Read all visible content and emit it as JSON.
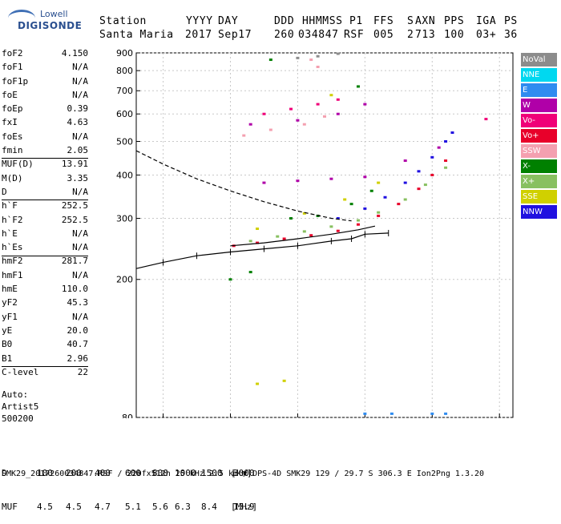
{
  "logo": {
    "line1": "Lowell",
    "line2": "DIGISONDE"
  },
  "header": {
    "labels": [
      "Station",
      "YYYY",
      "DAY",
      "DDD",
      "HHMMSS",
      "P1",
      "FFS",
      "S",
      "AXN",
      "PPS",
      "IGA",
      "PS"
    ],
    "values": [
      "Santa Maria",
      "2017",
      "Sep17",
      "260",
      "034847",
      "RSF",
      "005",
      "2",
      "713",
      "100",
      "03+",
      "36"
    ]
  },
  "params": [
    {
      "label": "foF2",
      "value": "4.150"
    },
    {
      "label": "foF1",
      "value": "N/A"
    },
    {
      "label": "foF1p",
      "value": "N/A"
    },
    {
      "label": "foE",
      "value": "N/A"
    },
    {
      "label": "foEp",
      "value": "0.39"
    },
    {
      "label": "fxI",
      "value": "4.63"
    },
    {
      "label": "foEs",
      "value": "N/A"
    },
    {
      "label": "fmin",
      "value": "2.05"
    },
    {
      "label": "MUF(D)",
      "value": "13.91"
    },
    {
      "label": "M(D)",
      "value": "3.35"
    },
    {
      "label": "D",
      "value": "N/A"
    },
    {
      "label": "h`F",
      "value": "252.5"
    },
    {
      "label": "h`F2",
      "value": "252.5"
    },
    {
      "label": "h`E",
      "value": "N/A"
    },
    {
      "label": "h`Es",
      "value": "N/A"
    },
    {
      "label": "hmF2",
      "value": "281.7"
    },
    {
      "label": "hmF1",
      "value": "N/A"
    },
    {
      "label": "hmE",
      "value": "110.0"
    },
    {
      "label": "yF2",
      "value": "45.3"
    },
    {
      "label": "yF1",
      "value": "N/A"
    },
    {
      "label": "yE",
      "value": "20.0"
    },
    {
      "label": "B0",
      "value": "40.7"
    },
    {
      "label": "B1",
      "value": "2.96"
    },
    {
      "label": "C-level",
      "value": "22"
    }
  ],
  "autoscaling": {
    "line1": "Auto:",
    "line2": "Artist5",
    "line3": "500200"
  },
  "legend": [
    {
      "name": "NoVal",
      "color": "#8c8c8c"
    },
    {
      "name": "NNE",
      "color": "#00d8f0"
    },
    {
      "name": "E",
      "color": "#2f8cf0"
    },
    {
      "name": "W",
      "color": "#b000a8"
    },
    {
      "name": "Vo-",
      "color": "#f00078"
    },
    {
      "name": "Vo+",
      "color": "#e8002a"
    },
    {
      "name": "SSW",
      "color": "#f4a0b0"
    },
    {
      "name": "X-",
      "color": "#008000"
    },
    {
      "name": "X+",
      "color": "#88c060"
    },
    {
      "name": "SSE",
      "color": "#d0d000"
    },
    {
      "name": "NNW",
      "color": "#2010e0"
    }
  ],
  "distance_muf": {
    "d_label": "D",
    "d_values": [
      "100",
      "200",
      "400",
      "600",
      "800",
      "1000",
      "1500",
      "3000"
    ],
    "d_unit": "[km]",
    "muf_label": "MUF",
    "muf_values": [
      "4.5",
      "4.5",
      "4.7",
      "5.1",
      "5.6",
      "6.3",
      "8.4",
      "13.9"
    ],
    "muf_unit": "[MHz]"
  },
  "footer": "SMK29_2017260034847.RSF / 220fx512h 25 kHz 2.5 km / DPS-4D SMK29 129 / 29.7 S 306.3 E Ion2Png 1.3.20",
  "chart_data": {
    "type": "scatter",
    "title": "",
    "xlabel": "",
    "ylabel": "",
    "xlim": [
      0.6,
      6.2
    ],
    "ylim": [
      80,
      900
    ],
    "x_ticks": [
      1,
      2,
      3,
      4,
      5,
      6
    ],
    "y_ticks": [
      80,
      200,
      300,
      400,
      500,
      600,
      700,
      800,
      900
    ],
    "y_scale": "log",
    "grid": true,
    "clusters": [
      {
        "series": "Vo+",
        "points": [
          [
            2.05,
            250
          ],
          [
            2.4,
            255
          ],
          [
            2.8,
            262
          ],
          [
            3.2,
            268
          ],
          [
            3.6,
            276
          ],
          [
            3.9,
            288
          ],
          [
            4.2,
            305
          ],
          [
            4.5,
            330
          ],
          [
            4.8,
            365
          ],
          [
            5.0,
            400
          ],
          [
            5.2,
            440
          ]
        ]
      },
      {
        "series": "X+",
        "points": [
          [
            2.3,
            258
          ],
          [
            2.7,
            266
          ],
          [
            3.1,
            275
          ],
          [
            3.5,
            284
          ],
          [
            3.9,
            296
          ],
          [
            4.2,
            312
          ],
          [
            4.6,
            340
          ],
          [
            4.9,
            375
          ],
          [
            5.2,
            420
          ]
        ]
      },
      {
        "series": "NNW",
        "points": [
          [
            3.6,
            300
          ],
          [
            4.0,
            320
          ],
          [
            4.3,
            345
          ],
          [
            4.6,
            380
          ],
          [
            4.8,
            410
          ],
          [
            5.0,
            450
          ],
          [
            5.2,
            500
          ],
          [
            5.3,
            530
          ]
        ]
      },
      {
        "series": "W",
        "points": [
          [
            2.5,
            380
          ],
          [
            3.0,
            385
          ],
          [
            3.5,
            390
          ],
          [
            4.0,
            395
          ],
          [
            4.6,
            440
          ],
          [
            5.1,
            480
          ],
          [
            2.3,
            560
          ],
          [
            3.0,
            575
          ],
          [
            3.6,
            600
          ],
          [
            4.0,
            640
          ]
        ]
      },
      {
        "series": "X-",
        "points": [
          [
            2.9,
            300
          ],
          [
            3.3,
            305
          ],
          [
            3.8,
            330
          ],
          [
            4.1,
            360
          ],
          [
            2.0,
            200
          ],
          [
            2.3,
            210
          ],
          [
            2.6,
            860
          ],
          [
            3.9,
            720
          ]
        ]
      },
      {
        "series": "SSE",
        "points": [
          [
            2.4,
            280
          ],
          [
            3.1,
            310
          ],
          [
            3.7,
            340
          ],
          [
            4.2,
            380
          ],
          [
            2.4,
            100
          ],
          [
            2.8,
            102
          ],
          [
            3.5,
            680
          ]
        ]
      },
      {
        "series": "SSW",
        "points": [
          [
            2.2,
            520
          ],
          [
            2.6,
            540
          ],
          [
            3.1,
            560
          ],
          [
            3.4,
            590
          ],
          [
            3.2,
            860
          ],
          [
            3.3,
            820
          ]
        ]
      },
      {
        "series": "E",
        "points": [
          [
            4.0,
            82
          ],
          [
            4.4,
            82
          ],
          [
            5.0,
            82
          ],
          [
            5.2,
            82
          ]
        ]
      },
      {
        "series": "Vo-",
        "points": [
          [
            2.5,
            600
          ],
          [
            2.9,
            620
          ],
          [
            3.3,
            640
          ],
          [
            3.6,
            660
          ],
          [
            5.8,
            580
          ]
        ]
      },
      {
        "series": "NoVal",
        "points": [
          [
            3.0,
            870
          ],
          [
            3.3,
            880
          ],
          [
            3.6,
            895
          ]
        ]
      }
    ],
    "curves": [
      {
        "name": "virtual-height-profile",
        "style": "dashed",
        "points": [
          [
            0.6,
            470
          ],
          [
            1.0,
            430
          ],
          [
            1.5,
            390
          ],
          [
            2.0,
            360
          ],
          [
            2.5,
            335
          ],
          [
            3.0,
            315
          ],
          [
            3.5,
            300
          ],
          [
            3.8,
            295
          ]
        ]
      },
      {
        "name": "trace-fit",
        "style": "ticked",
        "points": [
          [
            0.6,
            215
          ],
          [
            1.0,
            224
          ],
          [
            1.5,
            234
          ],
          [
            2.0,
            240
          ],
          [
            2.5,
            245
          ],
          [
            3.0,
            250
          ],
          [
            3.5,
            258
          ],
          [
            3.8,
            262
          ],
          [
            4.0,
            270
          ],
          [
            4.35,
            272
          ]
        ]
      },
      {
        "name": "trace-fit-upper",
        "style": "solid",
        "points": [
          [
            2.0,
            250
          ],
          [
            2.5,
            255
          ],
          [
            3.0,
            262
          ],
          [
            3.5,
            270
          ],
          [
            3.9,
            278
          ],
          [
            4.15,
            285
          ]
        ]
      }
    ]
  }
}
